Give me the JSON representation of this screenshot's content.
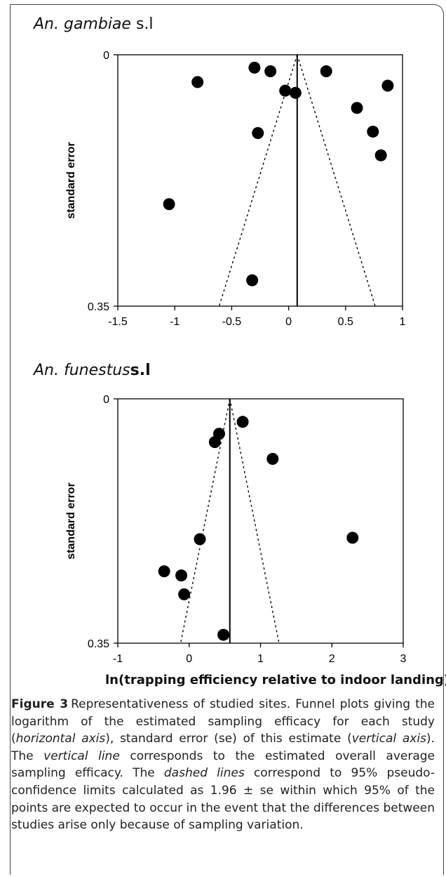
{
  "figure": {
    "panels": [
      {
        "title_italic": "An. gambiae",
        "title_suffix": " s.l",
        "suffix_style": "roman"
      },
      {
        "title_italic": "An. funestus",
        "title_suffix": "s.l",
        "suffix_style": "bold"
      }
    ],
    "shared_xlabel": "ln(trapping efficiency relative to indoor landing)",
    "caption": {
      "figure_label": "Figure 3",
      "segments": [
        {
          "text": "Representativeness of studied sites. Funnel plots giving the logarithm of the estimated sampling efficacy for each study (",
          "italic": false
        },
        {
          "text": "horizontal axis",
          "italic": true
        },
        {
          "text": "), standard error (se) of this estimate (",
          "italic": false
        },
        {
          "text": "vertical axis",
          "italic": true
        },
        {
          "text": "). The ",
          "italic": false
        },
        {
          "text": "vertical line",
          "italic": true
        },
        {
          "text": " corresponds to the estimated overall average sampling efficacy. The ",
          "italic": false
        },
        {
          "text": "dashed lines",
          "italic": true
        },
        {
          "text": " correspond to 95% pseudo-confidence limits calculated as 1.96 ± se within which 95% of the points are expected to occur in the event that the differences between studies arise only because of sampling variation.",
          "italic": false
        }
      ]
    }
  },
  "chart_data": [
    {
      "type": "scatter",
      "title": "An. gambiae s.l",
      "xlabel": "ln(trapping efficiency relative to indoor landing)",
      "ylabel": "standard error",
      "xlim": [
        -1.5,
        1
      ],
      "ylim": [
        0.35,
        0
      ],
      "y_inverted": true,
      "xticks": [
        "-1.5",
        "-1",
        "-0.5",
        "0",
        "0.5",
        "1"
      ],
      "yticks": [
        "0",
        "0.35"
      ],
      "grid": false,
      "points": [
        {
          "x": -1.05,
          "y": 0.208
        },
        {
          "x": -0.8,
          "y": 0.038
        },
        {
          "x": -0.3,
          "y": 0.018
        },
        {
          "x": -0.27,
          "y": 0.109
        },
        {
          "x": -0.16,
          "y": 0.023
        },
        {
          "x": -0.32,
          "y": 0.314
        },
        {
          "x": -0.03,
          "y": 0.05
        },
        {
          "x": 0.06,
          "y": 0.053
        },
        {
          "x": 0.33,
          "y": 0.023
        },
        {
          "x": 0.6,
          "y": 0.074
        },
        {
          "x": 0.74,
          "y": 0.107
        },
        {
          "x": 0.81,
          "y": 0.14
        },
        {
          "x": 0.87,
          "y": 0.043
        }
      ],
      "reference_line_x": 0.075,
      "funnel_limits": {
        "apex": [
          0.075,
          0
        ],
        "bottom_se": 0.35,
        "bottom_left_x": -0.61,
        "bottom_right_x": 0.76
      }
    },
    {
      "type": "scatter",
      "title": "An. funestus s.l",
      "xlabel": "ln(trapping efficiency relative to indoor landing)",
      "ylabel": "standard error",
      "xlim": [
        -1,
        3
      ],
      "ylim": [
        0.35,
        0
      ],
      "y_inverted": true,
      "xticks": [
        "-1",
        "0",
        "1",
        "2",
        "3"
      ],
      "yticks": [
        "0",
        "0.35"
      ],
      "grid": false,
      "points": [
        {
          "x": 0.42,
          "y": 0.05
        },
        {
          "x": 0.36,
          "y": 0.062
        },
        {
          "x": 0.75,
          "y": 0.033
        },
        {
          "x": 1.17,
          "y": 0.086
        },
        {
          "x": 0.15,
          "y": 0.201
        },
        {
          "x": 2.29,
          "y": 0.199
        },
        {
          "x": -0.35,
          "y": 0.247
        },
        {
          "x": -0.11,
          "y": 0.253
        },
        {
          "x": -0.07,
          "y": 0.28
        },
        {
          "x": 0.48,
          "y": 0.338
        }
      ],
      "reference_line_x": 0.57,
      "funnel_limits": {
        "apex": [
          0.57,
          0
        ],
        "bottom_se": 0.35,
        "bottom_left_x": -0.12,
        "bottom_right_x": 1.26
      }
    }
  ]
}
